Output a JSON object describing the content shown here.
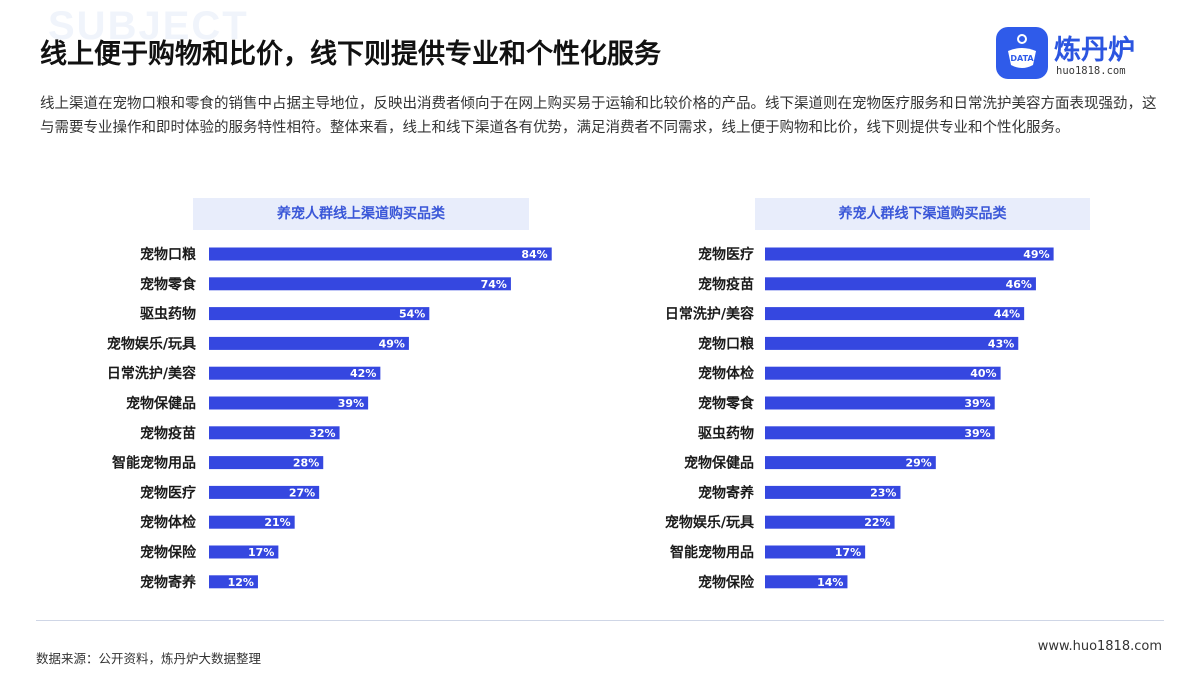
{
  "background_text": "SUBJECT",
  "title": "线上便于购物和比价，线下则提供专业和个性化服务",
  "logo": {
    "name": "炼丹炉",
    "url": "huo1818.com",
    "badge_text": "DATA"
  },
  "intro": "线上渠道在宠物口粮和零食的销售中占据主导地位，反映出消费者倾向于在网上购买易于运输和比较价格的产品。线下渠道则在宠物医疗服务和日常洗护美容方面表现强劲，这与需要专业操作和即时体验的服务特性相符。整体来看，线上和线下渠道各有优势，满足消费者不同需求，线上便于购物和比价，线下则提供专业和个性化服务。",
  "colors": {
    "bar": "#3547e0",
    "accent": "#2f5bea",
    "title_bg": "#e8edfb",
    "title_text": "#3a57d8"
  },
  "chart_data": [
    {
      "type": "bar",
      "orientation": "horizontal",
      "title": "养宠人群线上渠道购买品类",
      "categories": [
        "宠物口粮",
        "宠物零食",
        "驱虫药物",
        "宠物娱乐/玩具",
        "日常洗护/美容",
        "宠物保健品",
        "宠物疫苗",
        "智能宠物用品",
        "宠物医疗",
        "宠物体检",
        "宠物保险",
        "宠物寄养"
      ],
      "values": [
        84,
        74,
        54,
        49,
        42,
        39,
        32,
        28,
        27,
        21,
        17,
        12
      ],
      "value_suffix": "%",
      "xlim": [
        0,
        100
      ],
      "grid": false
    },
    {
      "type": "bar",
      "orientation": "horizontal",
      "title": "养宠人群线下渠道购买品类",
      "categories": [
        "宠物医疗",
        "宠物疫苗",
        "日常洗护/美容",
        "宠物口粮",
        "宠物体检",
        "宠物零食",
        "驱虫药物",
        "宠物保健品",
        "宠物寄养",
        "宠物娱乐/玩具",
        "智能宠物用品",
        "宠物保险"
      ],
      "values": [
        49,
        46,
        44,
        43,
        40,
        39,
        39,
        29,
        23,
        22,
        17,
        14
      ],
      "value_suffix": "%",
      "xlim": [
        0,
        100
      ],
      "grid": false
    }
  ],
  "footer": {
    "source": "数据来源：公开资料，炼丹炉大数据整理",
    "site": "www.huo1818.com"
  }
}
